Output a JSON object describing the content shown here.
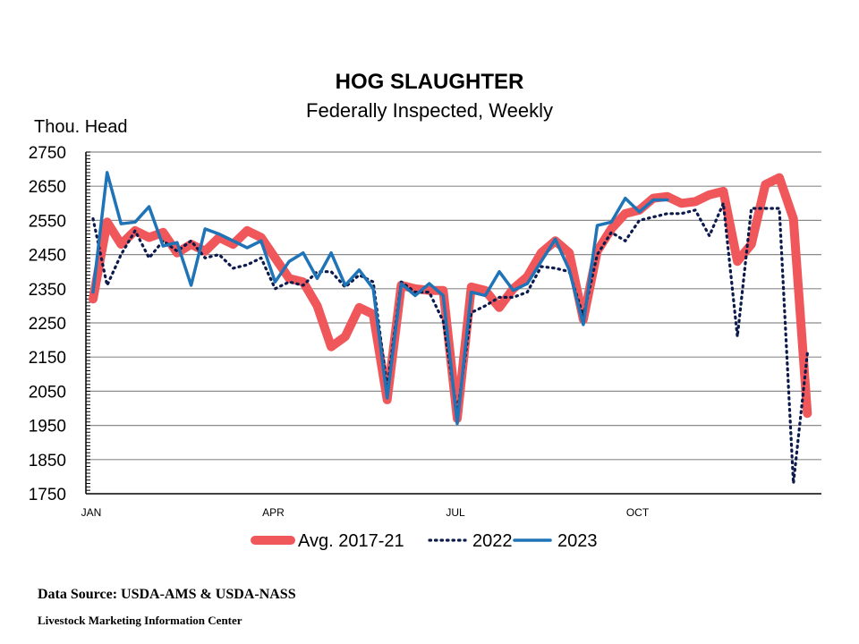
{
  "chart_data": {
    "type": "line",
    "title": "HOG SLAUGHTER",
    "subtitle": "Federally Inspected, Weekly",
    "ylabel": "Thou. Head",
    "ylim": [
      1750,
      2750
    ],
    "yticks": [
      2750,
      2650,
      2550,
      2450,
      2350,
      2250,
      2150,
      2050,
      1950,
      1850,
      1750
    ],
    "xlim": [
      1,
      53
    ],
    "x_tick_labels": [
      {
        "label": "JAN",
        "week": 1
      },
      {
        "label": "APR",
        "week": 14
      },
      {
        "label": "JUL",
        "week": 27
      },
      {
        "label": "OCT",
        "week": 40
      }
    ],
    "grid": "horizontal",
    "legend_position": "bottom",
    "series": [
      {
        "name": "Avg. 2017-21",
        "color": "#f0575a",
        "style": "thick-solid",
        "x": [
          1,
          2,
          3,
          4,
          5,
          6,
          7,
          8,
          9,
          10,
          11,
          12,
          13,
          14,
          15,
          16,
          17,
          18,
          19,
          20,
          21,
          22,
          23,
          24,
          25,
          26,
          27,
          28,
          29,
          30,
          31,
          32,
          33,
          34,
          35,
          36,
          37,
          38,
          39,
          40,
          41,
          42,
          43,
          44,
          45,
          46,
          47,
          48,
          49,
          50,
          51,
          52,
          53
        ],
        "values": [
          2320,
          2545,
          2480,
          2520,
          2500,
          2515,
          2455,
          2480,
          2460,
          2500,
          2480,
          2520,
          2500,
          2440,
          2380,
          2370,
          2300,
          2180,
          2210,
          2295,
          2275,
          2025,
          2360,
          2350,
          2345,
          2345,
          1970,
          2355,
          2345,
          2295,
          2350,
          2385,
          2455,
          2490,
          2455,
          2260,
          2460,
          2525,
          2570,
          2580,
          2615,
          2620,
          2600,
          2605,
          2625,
          2635,
          2430,
          2480,
          2655,
          2675,
          2555,
          1985,
          null
        ]
      },
      {
        "name": "2022",
        "color": "#0d1b4c",
        "style": "dotted",
        "x": [
          1,
          2,
          3,
          4,
          5,
          6,
          7,
          8,
          9,
          10,
          11,
          12,
          13,
          14,
          15,
          16,
          17,
          18,
          19,
          20,
          21,
          22,
          23,
          24,
          25,
          26,
          27,
          28,
          29,
          30,
          31,
          32,
          33,
          34,
          35,
          36,
          37,
          38,
          39,
          40,
          41,
          42,
          43,
          44,
          45,
          46,
          47,
          48,
          49,
          50,
          51,
          52
        ],
        "values": [
          2555,
          2360,
          2450,
          2520,
          2440,
          2490,
          2460,
          2490,
          2440,
          2450,
          2410,
          2420,
          2440,
          2350,
          2370,
          2360,
          2400,
          2400,
          2355,
          2390,
          2370,
          2060,
          2370,
          2340,
          2340,
          2255,
          1985,
          2280,
          2300,
          2325,
          2325,
          2340,
          2415,
          2410,
          2400,
          2270,
          2450,
          2515,
          2490,
          2550,
          2560,
          2570,
          2570,
          2580,
          2505,
          2600,
          2210,
          2585,
          2585,
          2585,
          1780,
          2160
        ]
      },
      {
        "name": "2023",
        "color": "#1f73b7",
        "style": "solid",
        "x": [
          1,
          2,
          3,
          4,
          5,
          6,
          7,
          8,
          9,
          10,
          11,
          12,
          13,
          14,
          15,
          16,
          17,
          18,
          19,
          20,
          21,
          22,
          23,
          24,
          25,
          26,
          27,
          28,
          29,
          30,
          31,
          32,
          33,
          34,
          35,
          36,
          37,
          38,
          39,
          40,
          41,
          42
        ],
        "values": [
          2340,
          2690,
          2540,
          2545,
          2590,
          2475,
          2485,
          2360,
          2525,
          2510,
          2490,
          2470,
          2490,
          2370,
          2430,
          2455,
          2380,
          2455,
          2360,
          2405,
          2350,
          2030,
          2365,
          2330,
          2365,
          2330,
          1955,
          2340,
          2330,
          2400,
          2345,
          2365,
          2430,
          2495,
          2405,
          2245,
          2535,
          2545,
          2615,
          2575,
          2610,
          2610
        ]
      }
    ]
  },
  "footer": {
    "source": "Data Source:  USDA-AMS & USDA-NASS",
    "credit": "Livestock Marketing Information  Center"
  }
}
